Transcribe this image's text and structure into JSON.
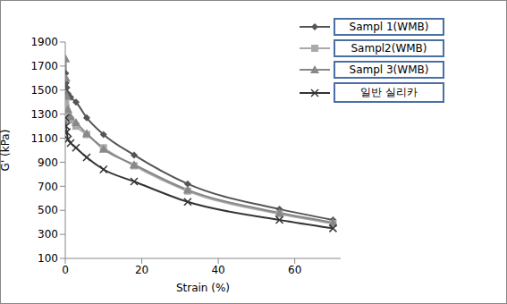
{
  "chart_data": {
    "type": "line",
    "x_label": "Strain (%)",
    "y_label": "G' (kPa)",
    "x": [
      0.1,
      0.2,
      0.4,
      0.7,
      1.4,
      2.8,
      5.6,
      10,
      18,
      32,
      56,
      70
    ],
    "xlim": [
      0,
      72
    ],
    "xticks": [
      0,
      20,
      40,
      60
    ],
    "ylim": [
      100,
      1900
    ],
    "yticks": [
      100,
      300,
      500,
      700,
      900,
      1100,
      1300,
      1500,
      1700,
      1900
    ],
    "grid": false,
    "legend": "upper right",
    "series": [
      {
        "name": "Sampl 1(WMB)",
        "color": "#555555",
        "marker": "diamond",
        "values": [
          1640,
          1560,
          1520,
          1470,
          1440,
          1400,
          1270,
          1130,
          960,
          720,
          510,
          420
        ]
      },
      {
        "name": "Sampl2(WMB)",
        "color": "#aaaaaa",
        "marker": "square",
        "values": [
          1390,
          1350,
          1320,
          1280,
          1250,
          1200,
          1130,
          1020,
          870,
          660,
          470,
          390
        ]
      },
      {
        "name": "Sampl 3(WMB)",
        "color": "#888888",
        "marker": "triangle",
        "values": [
          1760,
          1600,
          1450,
          1340,
          1280,
          1230,
          1140,
          1010,
          880,
          670,
          480,
          400
        ]
      },
      {
        "name": "일반 실리카",
        "color": "#333333",
        "marker": "x",
        "values": [
          1270,
          1200,
          1150,
          1090,
          1060,
          1020,
          940,
          840,
          740,
          570,
          420,
          350
        ]
      }
    ]
  }
}
